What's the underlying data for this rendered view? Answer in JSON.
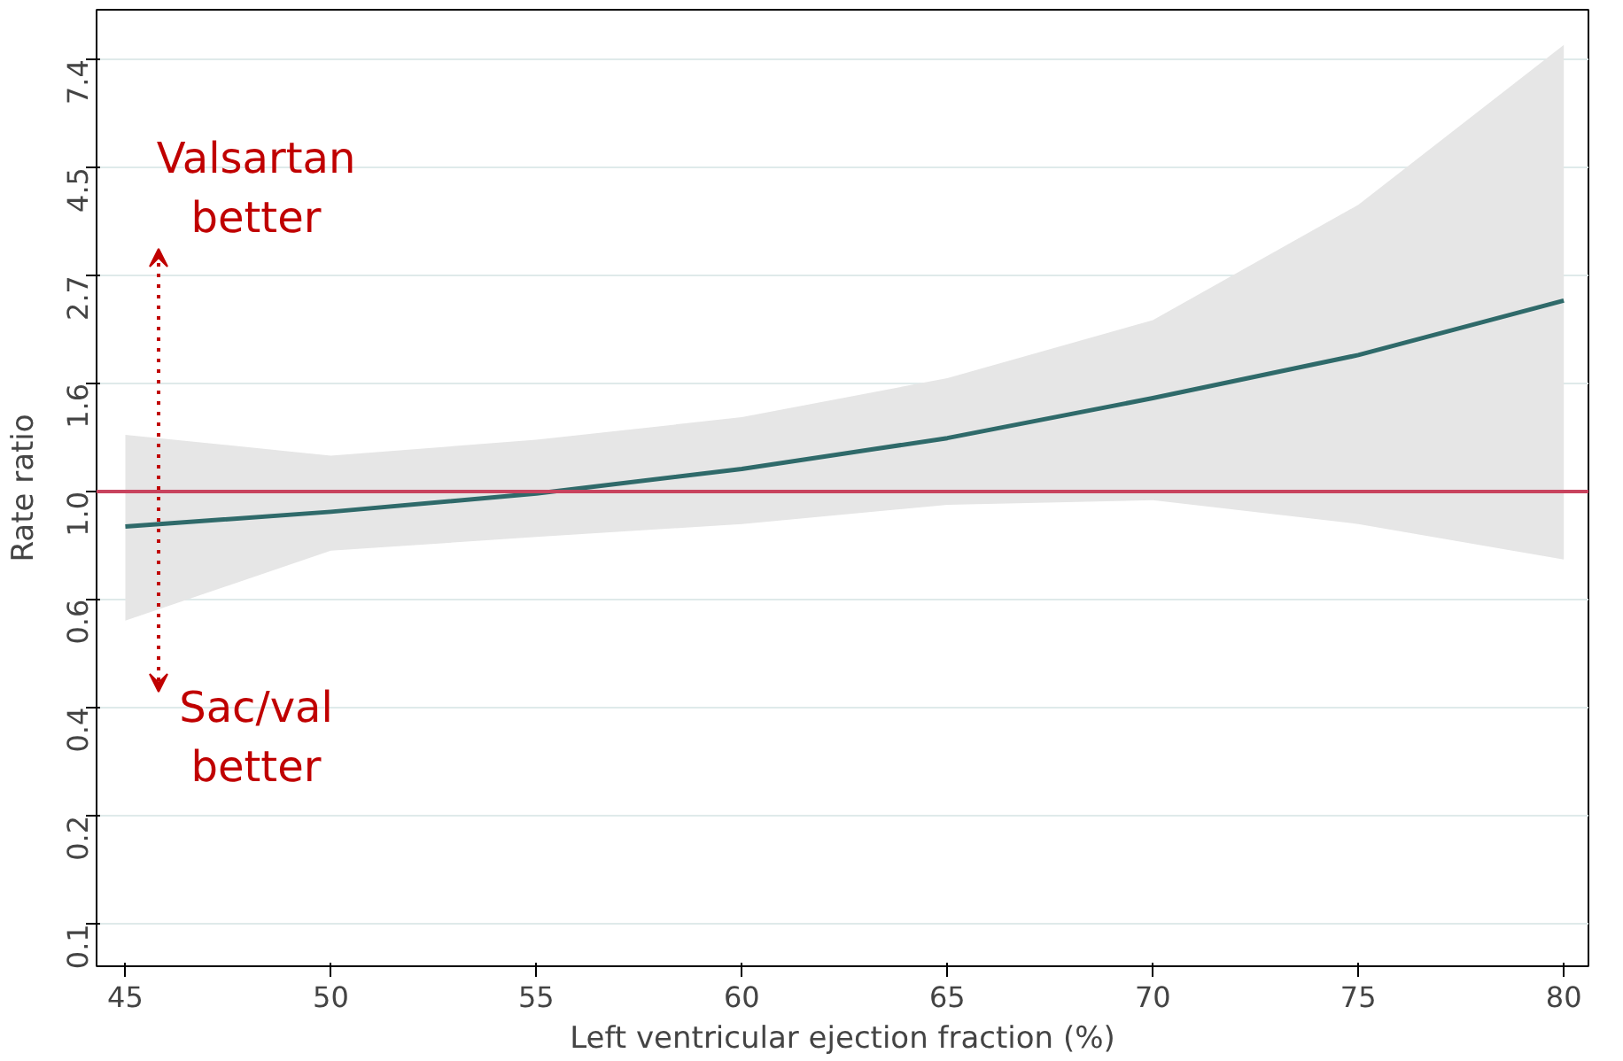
{
  "chart_data": {
    "type": "line",
    "xlabel": "Left ventricular ejection fraction (%)",
    "ylabel": "Rate ratio",
    "x": [
      45,
      50,
      55,
      60,
      65,
      70,
      75,
      80
    ],
    "series": [
      {
        "color": "#2f6a6a",
        "values": [
          0.85,
          0.91,
          0.99,
          1.11,
          1.28,
          1.54,
          1.88,
          2.42
        ],
        "lower": [
          0.55,
          0.76,
          0.81,
          0.86,
          0.94,
          0.96,
          0.86,
          0.73
        ],
        "upper": [
          1.3,
          1.18,
          1.27,
          1.41,
          1.69,
          2.21,
          3.77,
          7.9
        ]
      }
    ],
    "log": "y",
    "xlim": [
      44.3,
      80.6
    ],
    "ylim": [
      0.111,
      9.3
    ],
    "xticks": [
      45,
      50,
      55,
      60,
      65,
      70,
      75,
      80
    ],
    "yticks": [
      {
        "value": 0.135,
        "label": "0.1"
      },
      {
        "value": 0.223,
        "label": "0.2"
      },
      {
        "value": 0.368,
        "label": "0.4"
      },
      {
        "value": 0.607,
        "label": "0.6"
      },
      {
        "value": 1.0,
        "label": "1.0"
      },
      {
        "value": 1.649,
        "label": "1.6"
      },
      {
        "value": 2.718,
        "label": "2.7"
      },
      {
        "value": 4.482,
        "label": "4.5"
      },
      {
        "value": 7.389,
        "label": "7.4"
      }
    ],
    "grid": "y",
    "marker": "none",
    "line_style": "solid",
    "ref_lines": [
      {
        "axis": "y",
        "value": 1.0,
        "label": null,
        "color": "#c8435e"
      }
    ],
    "annotations": [
      "Valsartan better",
      "Sac/val better"
    ]
  }
}
